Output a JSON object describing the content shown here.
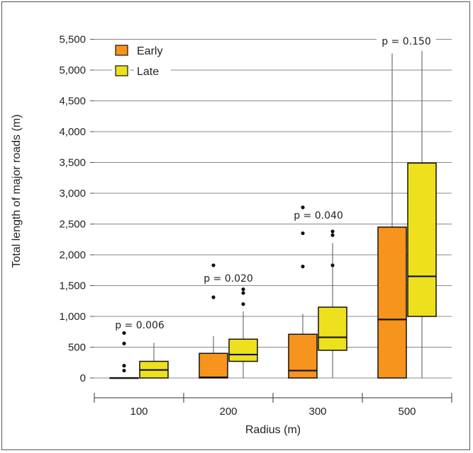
{
  "chart_data": {
    "type": "boxplot",
    "xlabel": "Radius (m)",
    "ylabel": "Total length of major roads (m)",
    "ylim": [
      0,
      5500
    ],
    "yticks": [
      0,
      500,
      1000,
      1500,
      2000,
      2500,
      3000,
      3500,
      4000,
      4500,
      5000,
      5500
    ],
    "ytick_labels": [
      "0",
      "500",
      "1,000",
      "1,500",
      "2,000",
      "2,500",
      "3,000",
      "3,500",
      "4,000",
      "4,500",
      "5,000",
      "5,500"
    ],
    "categories": [
      "100",
      "200",
      "300",
      "500"
    ],
    "grid": "horizontal",
    "legend_position": "top-left",
    "series": [
      {
        "name": "Early",
        "color": "#f7941d",
        "boxes": [
          {
            "min": 0,
            "q1": 0,
            "median": 0,
            "q3": 0,
            "max": 0,
            "outliers": [
              120,
              200,
              560,
              730
            ]
          },
          {
            "min": 0,
            "q1": 0,
            "median": 10,
            "q3": 400,
            "max": 680,
            "outliers": [
              1310,
              1830
            ]
          },
          {
            "min": 0,
            "q1": 0,
            "median": 120,
            "q3": 710,
            "max": 1040,
            "outliers": [
              1810,
              2350,
              2770
            ]
          },
          {
            "min": 0,
            "q1": 0,
            "median": 950,
            "q3": 2450,
            "max": 5270,
            "outliers": []
          }
        ]
      },
      {
        "name": "Late",
        "color": "#ede11e",
        "boxes": [
          {
            "min": 0,
            "q1": 0,
            "median": 130,
            "q3": 270,
            "max": 570,
            "outliers": []
          },
          {
            "min": 0,
            "q1": 270,
            "median": 380,
            "q3": 630,
            "max": 1080,
            "outliers": [
              1200,
              1380,
              1440
            ]
          },
          {
            "min": 0,
            "q1": 450,
            "median": 660,
            "q3": 1150,
            "max": 2190,
            "outliers": [
              1830,
              2320,
              2380
            ]
          },
          {
            "min": 0,
            "q1": 1000,
            "median": 1650,
            "q3": 3490,
            "max": 5310,
            "outliers": []
          }
        ]
      }
    ],
    "annotations": [
      "p = 0.006",
      "p = 0.020",
      "p = 0.040",
      "p = 0.150"
    ]
  }
}
